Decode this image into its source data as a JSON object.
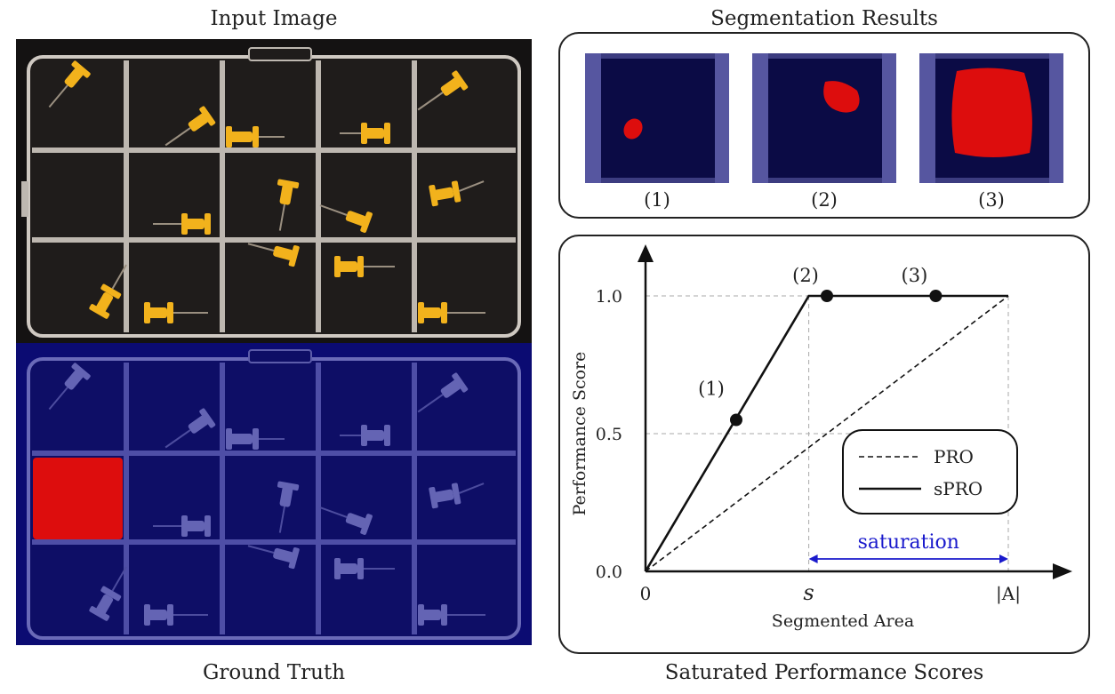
{
  "captions": {
    "input_image": "Input Image",
    "ground_truth": "Ground Truth",
    "segmentation_results": "Segmentation Results",
    "saturated_scores": "Saturated Performance Scores"
  },
  "segmentation": {
    "labels": [
      "(1)",
      "(2)",
      "(3)"
    ]
  },
  "chart_data": {
    "type": "line",
    "ylabel": "Performance Score",
    "xlabel": "Segmented Area",
    "yticks": [
      "0.0",
      "0.5",
      "1.0"
    ],
    "xticks": [
      "0",
      "s",
      "|A|"
    ],
    "ylim": [
      0,
      1
    ],
    "series": [
      {
        "name": "PRO",
        "style": "dashed",
        "points": [
          [
            0,
            0
          ],
          [
            1,
            1
          ]
        ]
      },
      {
        "name": "sPRO",
        "style": "solid",
        "points": [
          [
            0,
            0
          ],
          [
            0.45,
            1
          ],
          [
            1,
            1
          ]
        ]
      }
    ],
    "markers": [
      {
        "label": "(1)",
        "x": 0.25,
        "y": 0.55
      },
      {
        "label": "(2)",
        "x": 0.5,
        "y": 1.0
      },
      {
        "label": "(3)",
        "x": 0.8,
        "y": 1.0
      }
    ],
    "annotation": "saturation",
    "legend": {
      "position": "bottom-right",
      "entries": [
        "PRO",
        "sPRO"
      ]
    },
    "colors": {
      "annotation": "#1a1acc"
    }
  },
  "colors": {
    "box_dark": "#141212",
    "gt_blue": "#0b0b72",
    "defect_red": "#dd0d0d",
    "pin_yellow": "#f2b21c"
  }
}
